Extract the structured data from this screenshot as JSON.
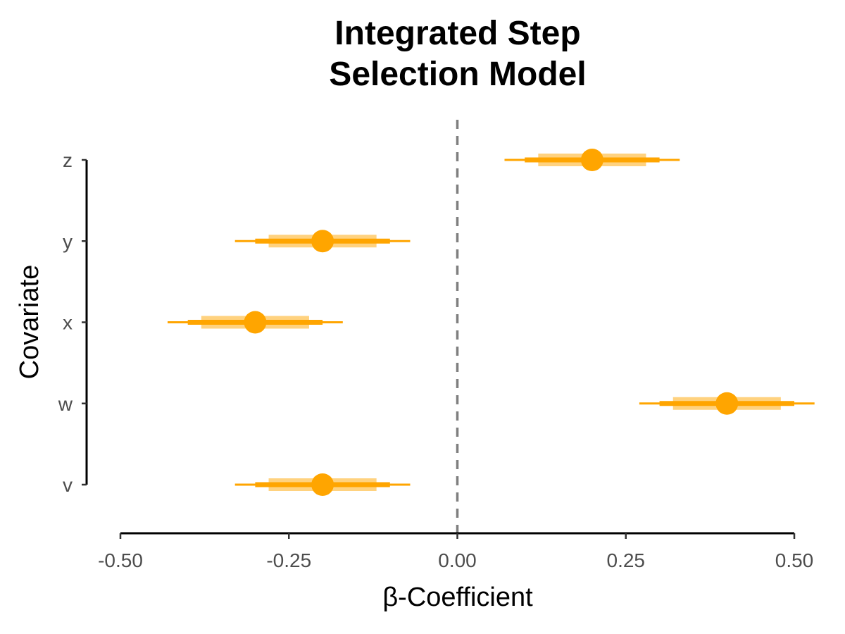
{
  "chart_data": {
    "type": "forest",
    "title_lines": [
      "Integrated Step",
      "Selection Model"
    ],
    "xlabel": "β-Coefficient",
    "ylabel": "Covariate",
    "xlim": [
      -0.5,
      0.5
    ],
    "x_ticks": [
      -0.5,
      -0.25,
      0.0,
      0.25,
      0.5
    ],
    "x_tick_labels": [
      "-0.50",
      "-0.25",
      "0.00",
      "0.25",
      "0.50"
    ],
    "reference_line": 0.0,
    "color": "#FFA500",
    "grid": false,
    "categories": [
      "z",
      "y",
      "x",
      "w",
      "v"
    ],
    "estimates": [
      {
        "covariate": "z",
        "estimate": 0.2,
        "inner": [
          0.12,
          0.28
        ],
        "mid": [
          0.1,
          0.3
        ],
        "outer": [
          0.07,
          0.33
        ]
      },
      {
        "covariate": "y",
        "estimate": -0.2,
        "inner": [
          -0.28,
          -0.12
        ],
        "mid": [
          -0.3,
          -0.1
        ],
        "outer": [
          -0.33,
          -0.07
        ]
      },
      {
        "covariate": "x",
        "estimate": -0.3,
        "inner": [
          -0.38,
          -0.22
        ],
        "mid": [
          -0.4,
          -0.2
        ],
        "outer": [
          -0.43,
          -0.17
        ]
      },
      {
        "covariate": "w",
        "estimate": 0.4,
        "inner": [
          0.32,
          0.48
        ],
        "mid": [
          0.3,
          0.5
        ],
        "outer": [
          0.27,
          0.53
        ]
      },
      {
        "covariate": "v",
        "estimate": -0.2,
        "inner": [
          -0.28,
          -0.12
        ],
        "mid": [
          -0.3,
          -0.1
        ],
        "outer": [
          -0.33,
          -0.07
        ]
      }
    ]
  }
}
